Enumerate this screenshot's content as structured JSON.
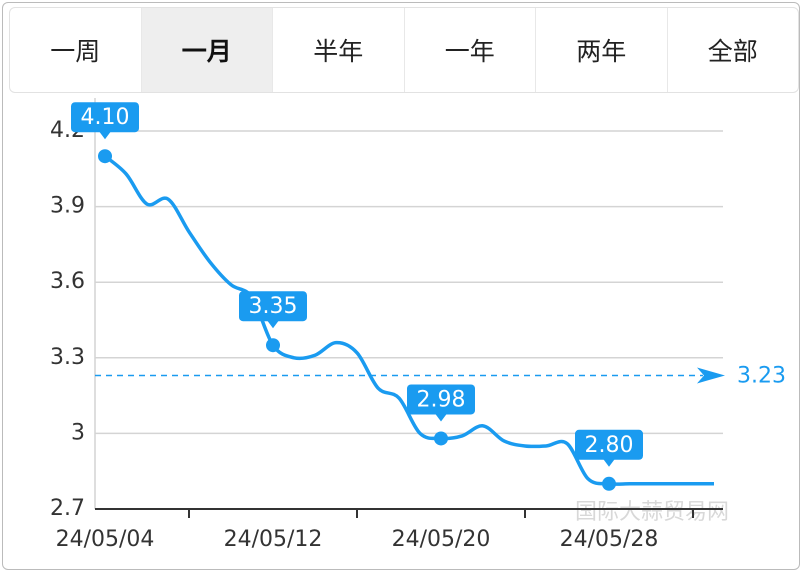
{
  "tabs": {
    "items": [
      "一周",
      "一月",
      "半年",
      "一年",
      "两年",
      "全部"
    ],
    "active": 1
  },
  "watermark": "国际大蒜贸易网",
  "chart_data": {
    "type": "line",
    "categories": [
      "24/05/04",
      null,
      null,
      null,
      null,
      null,
      null,
      null,
      "24/05/12",
      null,
      null,
      null,
      null,
      null,
      null,
      null,
      "24/05/20",
      null,
      null,
      null,
      null,
      null,
      null,
      null,
      "24/05/28",
      null,
      null,
      null,
      null,
      null
    ],
    "series": [
      {
        "name": null,
        "color": "#1a9bf0",
        "values": [
          4.1,
          4.03,
          3.91,
          3.93,
          3.8,
          3.68,
          3.59,
          3.54,
          3.35,
          3.3,
          3.31,
          3.36,
          3.32,
          3.18,
          3.14,
          3.0,
          2.98,
          2.99,
          3.03,
          2.97,
          2.95,
          2.95,
          2.96,
          2.82,
          2.8,
          2.8,
          2.8,
          2.8,
          2.8,
          2.8
        ],
        "value_labels": [
          "4.10",
          null,
          null,
          null,
          null,
          null,
          null,
          null,
          "3.35",
          null,
          null,
          null,
          null,
          null,
          null,
          null,
          "2.98",
          null,
          null,
          null,
          null,
          null,
          null,
          null,
          "2.80",
          null,
          null,
          null,
          null,
          null
        ]
      }
    ],
    "reference_line": 3.23,
    "ylim": [
      2.7,
      4.2
    ],
    "yticks": [
      2.7,
      3,
      3.3,
      3.6,
      3.9,
      4.2
    ],
    "grid": true
  }
}
